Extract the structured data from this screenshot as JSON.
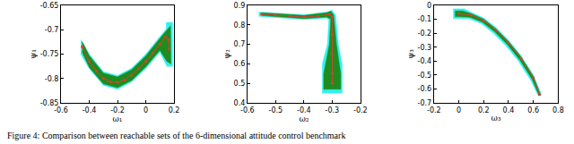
{
  "chart_data": [
    {
      "type": "scatter",
      "xlabel": "ω₁",
      "ylabel": "ψ₁",
      "xlim": [
        -0.6,
        0.2
      ],
      "ylim": [
        -0.85,
        -0.65
      ],
      "xticks": [
        -0.6,
        -0.4,
        -0.2,
        0,
        0.2
      ],
      "yticks": [
        -0.85,
        -0.8,
        -0.75,
        -0.7,
        -0.65
      ],
      "grid": false,
      "series": [
        {
          "type": "polygon",
          "color": "#33f0f0",
          "x": [
            -0.46,
            -0.4,
            -0.3,
            -0.2,
            -0.1,
            0,
            0.1,
            0.145,
            0.145,
            0.19,
            0.19,
            0.15,
            0.1,
            0,
            -0.1,
            -0.2,
            -0.3,
            -0.4,
            -0.46
          ],
          "y": [
            -0.72,
            -0.75,
            -0.786,
            -0.794,
            -0.779,
            -0.75,
            -0.714,
            -0.698,
            -0.685,
            -0.685,
            -0.775,
            -0.775,
            -0.746,
            -0.78,
            -0.807,
            -0.822,
            -0.814,
            -0.78,
            -0.75
          ]
        },
        {
          "type": "polygon",
          "color": "#1e8c1e",
          "x": [
            -0.45,
            -0.4,
            -0.3,
            -0.2,
            -0.1,
            0,
            0.1,
            0.15,
            0.175,
            0.178,
            0.15,
            0.1,
            0,
            -0.1,
            -0.2,
            -0.3,
            -0.4,
            -0.45
          ],
          "y": [
            -0.724,
            -0.753,
            -0.789,
            -0.797,
            -0.782,
            -0.754,
            -0.718,
            -0.7,
            -0.692,
            -0.77,
            -0.765,
            -0.742,
            -0.776,
            -0.804,
            -0.819,
            -0.811,
            -0.777,
            -0.746
          ]
        },
        {
          "type": "line",
          "color": "#d2452f",
          "marker": "circle",
          "x": [
            -0.45,
            -0.4,
            -0.35,
            -0.3,
            -0.25,
            -0.2,
            -0.15,
            -0.1,
            -0.05,
            0,
            0.05,
            0.1,
            0.14,
            0.16,
            0.165
          ],
          "y": [
            -0.735,
            -0.765,
            -0.785,
            -0.8,
            -0.807,
            -0.808,
            -0.803,
            -0.793,
            -0.78,
            -0.765,
            -0.748,
            -0.73,
            -0.715,
            -0.72,
            -0.74
          ]
        }
      ]
    },
    {
      "type": "scatter",
      "xlabel": "ω₂",
      "ylabel": "ψ₂",
      "xlim": [
        -0.6,
        -0.2
      ],
      "ylim": [
        0.4,
        0.9
      ],
      "xticks": [
        -0.6,
        -0.5,
        -0.4,
        -0.3,
        -0.2
      ],
      "yticks": [
        0.4,
        0.5,
        0.6,
        0.7,
        0.8,
        0.9
      ],
      "grid": false,
      "series": [
        {
          "type": "polygon",
          "color": "#33f0f0",
          "x": [
            -0.56,
            -0.4,
            -0.32,
            -0.3,
            -0.288,
            -0.278,
            -0.265,
            -0.265,
            -0.335,
            -0.335,
            -0.317,
            -0.312,
            -0.32,
            -0.4,
            -0.56
          ],
          "y": [
            0.866,
            0.852,
            0.866,
            0.875,
            0.85,
            0.7,
            0.6,
            0.45,
            0.45,
            0.6,
            0.7,
            0.826,
            0.835,
            0.828,
            0.844
          ]
        },
        {
          "type": "polygon",
          "color": "#1e8c1e",
          "x": [
            -0.55,
            -0.4,
            -0.32,
            -0.305,
            -0.295,
            -0.285,
            -0.27,
            -0.27,
            -0.33,
            -0.33,
            -0.31,
            -0.305,
            -0.32,
            -0.4,
            -0.55
          ],
          "y": [
            0.862,
            0.848,
            0.862,
            0.87,
            0.85,
            0.7,
            0.55,
            0.47,
            0.47,
            0.55,
            0.7,
            0.83,
            0.84,
            0.832,
            0.848
          ]
        },
        {
          "type": "line",
          "color": "#d2452f",
          "marker": "circle",
          "x": [
            -0.55,
            -0.5,
            -0.45,
            -0.4,
            -0.35,
            -0.31,
            -0.3,
            -0.3,
            -0.3,
            -0.3,
            -0.3
          ],
          "y": [
            0.855,
            0.85,
            0.845,
            0.84,
            0.845,
            0.855,
            0.84,
            0.75,
            0.65,
            0.55,
            0.5
          ]
        }
      ]
    },
    {
      "type": "scatter",
      "xlabel": "ω₃",
      "ylabel": "ψ₃",
      "xlim": [
        -0.2,
        0.8
      ],
      "ylim": [
        -0.7,
        0
      ],
      "xticks": [
        -0.2,
        0,
        0.2,
        0.4,
        0.6,
        0.8
      ],
      "yticks": [
        -0.7,
        -0.6,
        -0.5,
        -0.4,
        -0.3,
        -0.2,
        -0.1,
        0
      ],
      "grid": false,
      "series": [
        {
          "type": "polygon",
          "color": "#33f0f0",
          "x": [
            -0.045,
            0.045,
            0.1,
            0.2,
            0.3,
            0.4,
            0.5,
            0.6,
            0.665,
            0.64,
            0.58,
            0.48,
            0.38,
            0.28,
            0.18,
            0.08,
            -0.045
          ],
          "y": [
            -0.025,
            -0.025,
            -0.05,
            -0.09,
            -0.16,
            -0.25,
            -0.36,
            -0.5,
            -0.64,
            -0.65,
            -0.54,
            -0.4,
            -0.29,
            -0.2,
            -0.13,
            -0.095,
            -0.095
          ]
        },
        {
          "type": "polygon",
          "color": "#1e8c1e",
          "x": [
            -0.03,
            0.03,
            0.1,
            0.2,
            0.3,
            0.4,
            0.5,
            0.6,
            0.657,
            0.645,
            0.59,
            0.49,
            0.39,
            0.29,
            0.19,
            0.09,
            -0.03
          ],
          "y": [
            -0.04,
            -0.04,
            -0.06,
            -0.1,
            -0.17,
            -0.26,
            -0.37,
            -0.51,
            -0.64,
            -0.645,
            -0.53,
            -0.39,
            -0.28,
            -0.19,
            -0.12,
            -0.085,
            -0.08
          ]
        },
        {
          "type": "line",
          "color": "#d2452f",
          "marker": "circle",
          "x": [
            0,
            0.1,
            0.2,
            0.3,
            0.4,
            0.5,
            0.6,
            0.65
          ],
          "y": [
            -0.06,
            -0.07,
            -0.11,
            -0.18,
            -0.27,
            -0.38,
            -0.52,
            -0.64
          ]
        }
      ]
    }
  ],
  "caption": "Figure 4: Comparison between reachable sets of the 6-dimensional attitude control benchmark"
}
